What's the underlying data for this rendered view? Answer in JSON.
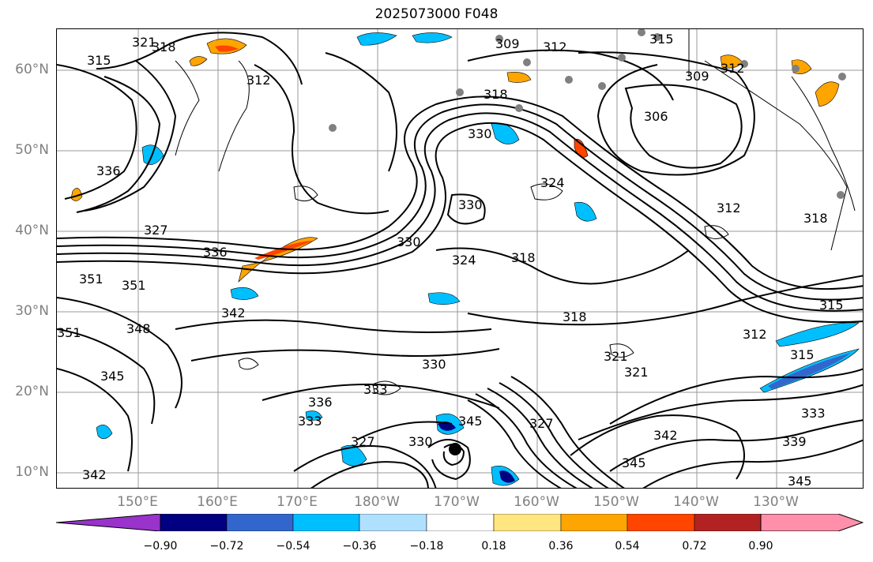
{
  "title": "2025073000 F048",
  "lat_labels": [
    "60°N",
    "50°N",
    "40°N",
    "30°N",
    "20°N",
    "10°N"
  ],
  "lon_labels": [
    "150°E",
    "160°E",
    "170°E",
    "180°W",
    "170°W",
    "160°W",
    "150°W",
    "140°W",
    "130°W"
  ],
  "contour_labels": [
    "321",
    "318",
    "315",
    "312",
    "309",
    "312",
    "315",
    "318",
    "309",
    "312",
    "306",
    "330",
    "336",
    "327",
    "336",
    "324",
    "318",
    "330",
    "324",
    "318",
    "312",
    "318",
    "315",
    "312",
    "351",
    "351",
    "348",
    "342",
    "351",
    "345",
    "330",
    "333",
    "336",
    "333",
    "327",
    "330",
    "345",
    "327",
    "321",
    "321",
    "342",
    "345",
    "339",
    "333",
    "315",
    "342",
    "345",
    "330"
  ],
  "colorbar": {
    "ticks": [
      "−0.90",
      "−0.72",
      "−0.54",
      "−0.36",
      "−0.18",
      "0.18",
      "0.36",
      "0.54",
      "0.72",
      "0.90"
    ],
    "colors": [
      "#9933cc",
      "#000080",
      "#3366cc",
      "#00bfff",
      "#b0e0ff",
      "#ffffff",
      "#ffe680",
      "#ffa500",
      "#ff4500",
      "#b22222",
      "#ff8fab",
      "#ff8fab"
    ]
  }
}
